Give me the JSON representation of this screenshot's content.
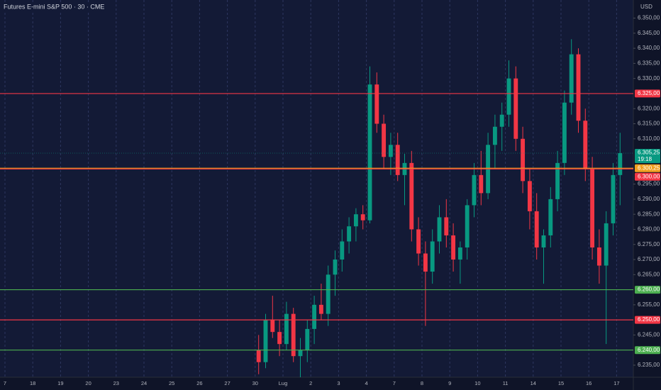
{
  "chart_data": {
    "type": "candlestick",
    "title": "Futures E-mini S&P 500 · 30 · CME",
    "currency": "USD",
    "categories": [
      "7",
      "18",
      "19",
      "20",
      "23",
      "24",
      "25",
      "26",
      "27",
      "30",
      "Lug",
      "2",
      "3",
      "4",
      "7",
      "8",
      "9",
      "10",
      "11",
      "14",
      "15",
      "16",
      "17"
    ],
    "candles": [
      null,
      null,
      null,
      null,
      null,
      null,
      null,
      null,
      null,
      [
        [
          6240,
          6245,
          6232,
          6236
        ],
        [
          6236,
          6252,
          6234,
          6250
        ],
        [
          6250,
          6258,
          6244,
          6246
        ],
        [
          6246,
          6250,
          6238,
          6242
        ]
      ],
      [
        [
          6242,
          6256,
          6240,
          6252
        ],
        [
          6252,
          6254,
          6236,
          6238
        ],
        [
          6238,
          6244,
          6231,
          6240
        ],
        [
          6240,
          6250,
          6236,
          6247
        ]
      ],
      [
        [
          6247,
          6258,
          6242,
          6255
        ],
        [
          6255,
          6262,
          6250,
          6252
        ],
        [
          6252,
          6268,
          6248,
          6265
        ],
        [
          6265,
          6273,
          6258,
          6270
        ]
      ],
      [
        [
          6270,
          6280,
          6266,
          6276
        ],
        [
          6276,
          6284,
          6272,
          6281
        ],
        [
          6281,
          6287,
          6276,
          6285
        ],
        [
          6285,
          6288,
          6280,
          6283
        ]
      ],
      [
        [
          6283,
          6334,
          6282,
          6328
        ],
        [
          6328,
          6332,
          6312,
          6315
        ],
        [
          6315,
          6318,
          6300,
          6304
        ],
        [
          6304,
          6312,
          6298,
          6308
        ]
      ],
      [
        [
          6308,
          6312,
          6296,
          6298
        ],
        [
          6298,
          6305,
          6288,
          6302
        ],
        [
          6302,
          6306,
          6276,
          6280
        ],
        [
          6280,
          6284,
          6268,
          6272
        ]
      ],
      [
        [
          6272,
          6276,
          6248,
          6266
        ],
        [
          6266,
          6280,
          6262,
          6276
        ],
        [
          6276,
          6288,
          6272,
          6284
        ],
        [
          6284,
          6290,
          6274,
          6278
        ]
      ],
      [
        [
          6278,
          6282,
          6266,
          6270
        ],
        [
          6270,
          6276,
          6262,
          6274
        ],
        [
          6274,
          6290,
          6270,
          6288
        ],
        [
          6288,
          6302,
          6284,
          6298
        ]
      ],
      [
        [
          6298,
          6306,
          6288,
          6292
        ],
        [
          6292,
          6312,
          6290,
          6308
        ],
        [
          6308,
          6318,
          6300,
          6314
        ],
        [
          6314,
          6322,
          6306,
          6318
        ]
      ],
      [
        [
          6318,
          6336,
          6314,
          6330
        ],
        [
          6330,
          6334,
          6306,
          6310
        ],
        [
          6310,
          6314,
          6292,
          6296
        ],
        [
          6296,
          6300,
          6280,
          6286
        ]
      ],
      [
        [
          6286,
          6292,
          6270,
          6274
        ],
        [
          6274,
          6280,
          6262,
          6278
        ],
        [
          6278,
          6294,
          6274,
          6290
        ],
        [
          6290,
          6306,
          6286,
          6302
        ]
      ],
      [
        [
          6302,
          6326,
          6298,
          6322
        ],
        [
          6322,
          6343,
          6318,
          6338
        ],
        [
          6338,
          6340,
          6312,
          6316
        ],
        [
          6316,
          6320,
          6296,
          6300
        ]
      ],
      [
        [
          6300,
          6304,
          6270,
          6274
        ],
        [
          6274,
          6280,
          6262,
          6268
        ],
        [
          6268,
          6286,
          6242,
          6282
        ],
        [
          6282,
          6302,
          6278,
          6298
        ]
      ],
      [
        [
          6298,
          6312,
          6288,
          6305.25
        ]
      ]
    ],
    "up_color": "#089981",
    "down_color": "#f23645",
    "ylim": [
      6231,
      6356
    ],
    "yticks": [
      {
        "value": 6350,
        "label": "6.350,00"
      },
      {
        "value": 6345,
        "label": "6.345,00"
      },
      {
        "value": 6340,
        "label": "6.340,00"
      },
      {
        "value": 6335,
        "label": "6.335,00"
      },
      {
        "value": 6330,
        "label": "6.330,00"
      },
      {
        "value": 6320,
        "label": "6.320,00"
      },
      {
        "value": 6315,
        "label": "6.315,00"
      },
      {
        "value": 6310,
        "label": "6.310,00"
      },
      {
        "value": 6295,
        "label": "6.295,00"
      },
      {
        "value": 6290,
        "label": "6.290,00"
      },
      {
        "value": 6285,
        "label": "6.285,00"
      },
      {
        "value": 6280,
        "label": "6.280,00"
      },
      {
        "value": 6275,
        "label": "6.275,00"
      },
      {
        "value": 6270,
        "label": "6.270,00"
      },
      {
        "value": 6265,
        "label": "6.265,00"
      },
      {
        "value": 6255,
        "label": "6.255,00"
      },
      {
        "value": 6245,
        "label": "6.245,00"
      },
      {
        "value": 6235,
        "label": "6.235,00"
      }
    ],
    "levels": [
      {
        "value": 6325,
        "label": "6.325,00",
        "color": "#f23645"
      },
      {
        "value": 6305.25,
        "label": "6.305,25",
        "time": "19:18",
        "color": "#089981"
      },
      {
        "value": 6300.25,
        "label": "6.300,25",
        "color": "#f0a020"
      },
      {
        "value": 6300,
        "label": "6.300,00",
        "color": "#f23645"
      },
      {
        "value": 6260,
        "label": "6.260,00",
        "color": "#4caf50"
      },
      {
        "value": 6250,
        "label": "6.250,00",
        "color": "#f23645"
      },
      {
        "value": 6240,
        "label": "6.240,00",
        "color": "#4caf50"
      }
    ]
  }
}
